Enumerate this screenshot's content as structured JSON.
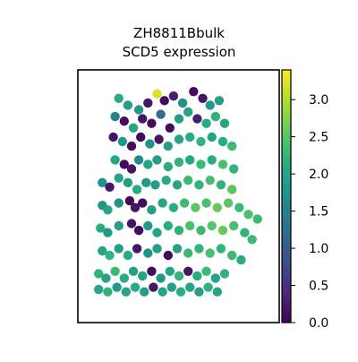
{
  "chart_data": {
    "type": "scatter",
    "title": "ZH8811Bbulk",
    "subtitle": "SCD5 expression",
    "xlabel": "",
    "ylabel": "",
    "grid": false,
    "colormap": "viridis",
    "colorbar": {
      "ticks": [
        0.0,
        0.5,
        1.0,
        1.5,
        2.0,
        2.5,
        3.0
      ],
      "tick_labels": [
        "0.0",
        "0.5",
        "1.0",
        "1.5",
        "2.0",
        "2.5",
        "3.0"
      ],
      "range": [
        0,
        3.4
      ],
      "location": "right"
    },
    "points": [
      [
        0.17,
        0.93,
        2.1
      ],
      [
        0.22,
        0.9,
        1.9
      ],
      [
        0.28,
        0.88,
        1.8
      ],
      [
        0.33,
        0.91,
        0.2
      ],
      [
        0.38,
        0.95,
        3.2
      ],
      [
        0.42,
        0.92,
        0.1
      ],
      [
        0.47,
        0.94,
        0.3
      ],
      [
        0.52,
        0.91,
        1.7
      ],
      [
        0.58,
        0.96,
        0.1
      ],
      [
        0.63,
        0.93,
        0.2
      ],
      [
        0.67,
        0.9,
        1.8
      ],
      [
        0.72,
        0.92,
        1.9
      ],
      [
        0.15,
        0.85,
        1.5
      ],
      [
        0.2,
        0.83,
        0.1
      ],
      [
        0.25,
        0.8,
        2.0
      ],
      [
        0.3,
        0.84,
        0.2
      ],
      [
        0.35,
        0.82,
        0.1
      ],
      [
        0.4,
        0.86,
        1.2
      ],
      [
        0.45,
        0.8,
        0.1
      ],
      [
        0.5,
        0.84,
        1.9
      ],
      [
        0.55,
        0.87,
        2.0
      ],
      [
        0.6,
        0.84,
        0.3
      ],
      [
        0.65,
        0.82,
        2.1
      ],
      [
        0.7,
        0.85,
        2.2
      ],
      [
        0.75,
        0.82,
        2.0
      ],
      [
        0.14,
        0.76,
        0.2
      ],
      [
        0.19,
        0.74,
        1.8
      ],
      [
        0.24,
        0.72,
        0.1
      ],
      [
        0.29,
        0.76,
        0.1
      ],
      [
        0.34,
        0.73,
        1.7
      ],
      [
        0.39,
        0.75,
        0.2
      ],
      [
        0.44,
        0.72,
        1.9
      ],
      [
        0.5,
        0.75,
        2.0
      ],
      [
        0.56,
        0.76,
        2.1
      ],
      [
        0.62,
        0.74,
        2.2
      ],
      [
        0.68,
        0.76,
        2.0
      ],
      [
        0.74,
        0.74,
        2.1
      ],
      [
        0.79,
        0.72,
        2.3
      ],
      [
        0.15,
        0.66,
        2.0
      ],
      [
        0.2,
        0.64,
        0.1
      ],
      [
        0.24,
        0.62,
        0.2
      ],
      [
        0.28,
        0.66,
        1.6
      ],
      [
        0.33,
        0.64,
        2.0
      ],
      [
        0.38,
        0.66,
        1.9
      ],
      [
        0.44,
        0.63,
        2.1
      ],
      [
        0.5,
        0.65,
        2.2
      ],
      [
        0.56,
        0.66,
        2.0
      ],
      [
        0.62,
        0.64,
        2.3
      ],
      [
        0.68,
        0.66,
        2.1
      ],
      [
        0.74,
        0.64,
        2.4
      ],
      [
        0.8,
        0.62,
        2.2
      ],
      [
        0.08,
        0.56,
        1.7
      ],
      [
        0.12,
        0.54,
        0.2
      ],
      [
        0.17,
        0.58,
        2.0
      ],
      [
        0.22,
        0.56,
        1.9
      ],
      [
        0.27,
        0.53,
        2.1
      ],
      [
        0.32,
        0.56,
        1.8
      ],
      [
        0.37,
        0.55,
        1.9
      ],
      [
        0.43,
        0.57,
        2.1
      ],
      [
        0.49,
        0.55,
        2.0
      ],
      [
        0.55,
        0.57,
        2.3
      ],
      [
        0.61,
        0.55,
        2.2
      ],
      [
        0.67,
        0.57,
        2.4
      ],
      [
        0.73,
        0.55,
        2.2
      ],
      [
        0.79,
        0.53,
        2.5
      ],
      [
        0.08,
        0.46,
        1.8
      ],
      [
        0.11,
        0.44,
        2.0
      ],
      [
        0.17,
        0.47,
        1.7
      ],
      [
        0.23,
        0.48,
        0.1
      ],
      [
        0.26,
        0.45,
        0.2
      ],
      [
        0.3,
        0.47,
        0.1
      ],
      [
        0.35,
        0.44,
        1.9
      ],
      [
        0.41,
        0.47,
        2.0
      ],
      [
        0.47,
        0.45,
        2.1
      ],
      [
        0.53,
        0.47,
        2.3
      ],
      [
        0.59,
        0.45,
        2.5
      ],
      [
        0.65,
        0.47,
        2.4
      ],
      [
        0.71,
        0.45,
        2.6
      ],
      [
        0.77,
        0.47,
        2.5
      ],
      [
        0.83,
        0.45,
        2.3
      ],
      [
        0.88,
        0.42,
        2.4
      ],
      [
        0.93,
        0.4,
        2.3
      ],
      [
        0.07,
        0.36,
        2.1
      ],
      [
        0.11,
        0.34,
        1.8
      ],
      [
        0.17,
        0.37,
        1.9
      ],
      [
        0.24,
        0.38,
        0.2
      ],
      [
        0.28,
        0.35,
        0.1
      ],
      [
        0.33,
        0.37,
        1.8
      ],
      [
        0.38,
        0.34,
        2.0
      ],
      [
        0.44,
        0.37,
        2.1
      ],
      [
        0.5,
        0.35,
        2.2
      ],
      [
        0.56,
        0.37,
        2.4
      ],
      [
        0.62,
        0.35,
        2.3
      ],
      [
        0.68,
        0.37,
        2.5
      ],
      [
        0.74,
        0.35,
        2.6
      ],
      [
        0.8,
        0.37,
        2.4
      ],
      [
        0.86,
        0.34,
        2.2
      ],
      [
        0.9,
        0.31,
        2.3
      ],
      [
        0.08,
        0.26,
        2.0
      ],
      [
        0.12,
        0.24,
        2.2
      ],
      [
        0.17,
        0.27,
        1.9
      ],
      [
        0.22,
        0.24,
        2.1
      ],
      [
        0.27,
        0.27,
        0.2
      ],
      [
        0.33,
        0.25,
        1.7
      ],
      [
        0.38,
        0.27,
        1.9
      ],
      [
        0.44,
        0.24,
        0.1
      ],
      [
        0.49,
        0.27,
        2.0
      ],
      [
        0.55,
        0.25,
        2.3
      ],
      [
        0.61,
        0.27,
        2.2
      ],
      [
        0.67,
        0.25,
        2.4
      ],
      [
        0.73,
        0.27,
        2.2
      ],
      [
        0.79,
        0.24,
        2.3
      ],
      [
        0.84,
        0.22,
        2.1
      ],
      [
        0.06,
        0.16,
        2.2
      ],
      [
        0.1,
        0.14,
        2.0
      ],
      [
        0.15,
        0.17,
        2.3
      ],
      [
        0.2,
        0.14,
        2.1
      ],
      [
        0.25,
        0.17,
        1.9
      ],
      [
        0.3,
        0.15,
        2.0
      ],
      [
        0.35,
        0.17,
        0.1
      ],
      [
        0.4,
        0.14,
        1.8
      ],
      [
        0.45,
        0.17,
        2.0
      ],
      [
        0.5,
        0.15,
        2.2
      ],
      [
        0.55,
        0.17,
        0.2
      ],
      [
        0.6,
        0.15,
        2.1
      ],
      [
        0.65,
        0.17,
        2.3
      ],
      [
        0.7,
        0.14,
        2.0
      ],
      [
        0.75,
        0.16,
        2.2
      ],
      [
        0.06,
        0.09,
        2.0
      ],
      [
        0.11,
        0.08,
        2.2
      ],
      [
        0.16,
        0.1,
        1.8
      ],
      [
        0.21,
        0.08,
        2.0
      ],
      [
        0.26,
        0.1,
        2.1
      ],
      [
        0.31,
        0.08,
        1.9
      ],
      [
        0.36,
        0.1,
        0.2
      ],
      [
        0.41,
        0.08,
        2.0
      ],
      [
        0.46,
        0.1,
        1.9
      ],
      [
        0.51,
        0.08,
        2.1
      ],
      [
        0.56,
        0.1,
        2.0
      ],
      [
        0.61,
        0.08,
        1.9
      ],
      [
        0.66,
        0.1,
        2.2
      ],
      [
        0.71,
        0.08,
        2.0
      ]
    ]
  }
}
